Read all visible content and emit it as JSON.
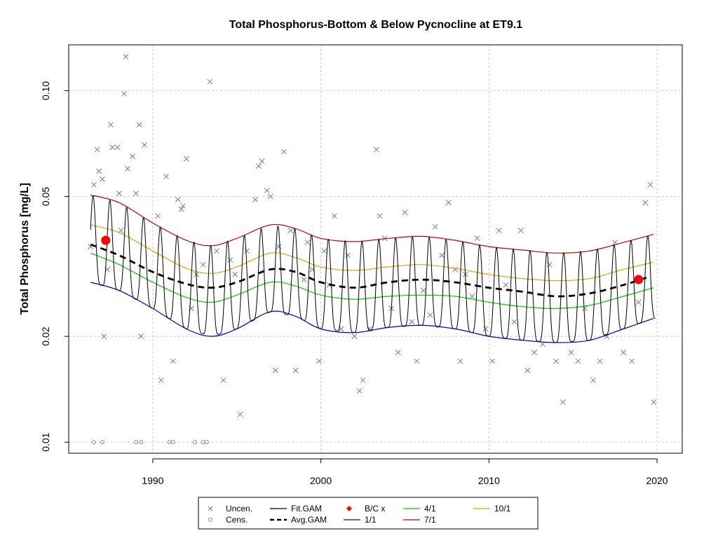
{
  "chart_data": {
    "type": "scatter",
    "title": "Total Phosphorus-Bottom & Below Pycnocline at ET9.1",
    "xlabel": "",
    "ylabel": "Total Phosphorus [mg/L]",
    "xlim": [
      1985.0,
      2021.5
    ],
    "ylim": [
      0.0093,
      0.135
    ],
    "y_scale": "log",
    "grid": true,
    "x_ticks": [
      1990,
      2000,
      2010,
      2020
    ],
    "x_tick_labels": [
      "1990",
      "2000",
      "2010",
      "2020"
    ],
    "y_ticks": [
      0.01,
      0.02,
      0.05,
      0.1
    ],
    "y_tick_labels": [
      "0.01",
      "0.02",
      "0.05",
      "0.10"
    ],
    "legend": {
      "position": "bottom",
      "entries": [
        {
          "label": "Uncen.",
          "symbol": "x",
          "color": "#6f7c96"
        },
        {
          "label": "Cens.",
          "symbol": "circle",
          "color": "#8a8a8a"
        },
        {
          "label": "Fit.GAM",
          "symbol": "line",
          "color": "#000000"
        },
        {
          "label": "Avg.GAM",
          "symbol": "dashed-line",
          "color": "#000000"
        },
        {
          "label": "B/C x",
          "symbol": "diamond",
          "color": "#ff0000"
        },
        {
          "label": "1/1",
          "symbol": "line",
          "color": "#0000cc"
        },
        {
          "label": "4/1",
          "symbol": "line",
          "color": "#00cc00"
        },
        {
          "label": "7/1",
          "symbol": "line",
          "color": "#cc0000"
        },
        {
          "label": "10/1",
          "symbol": "line",
          "color": "#e69f00"
        }
      ]
    },
    "series": [
      {
        "name": "Avg.GAM",
        "x": [
          1986.3,
          1988,
          1990,
          1992,
          1993.5,
          1995,
          1997,
          1998.5,
          2000,
          2002,
          2004,
          2006,
          2008,
          2010,
          2012,
          2014,
          2016,
          2018,
          2019.5
        ],
        "y": [
          0.0365,
          0.034,
          0.0305,
          0.0282,
          0.0275,
          0.0285,
          0.031,
          0.0305,
          0.0285,
          0.0275,
          0.0285,
          0.029,
          0.0285,
          0.0275,
          0.0268,
          0.026,
          0.0265,
          0.028,
          0.0295
        ]
      },
      {
        "name": "1/1",
        "x": [
          1986.3,
          1988,
          1990,
          1992,
          1993.5,
          1995,
          1997,
          1998.5,
          2000,
          2002,
          2004,
          2006,
          2008,
          2010,
          2012,
          2014,
          2016,
          2018,
          2019.8
        ],
        "y": [
          0.0285,
          0.027,
          0.024,
          0.021,
          0.02,
          0.021,
          0.0235,
          0.0228,
          0.021,
          0.0205,
          0.0212,
          0.0215,
          0.021,
          0.02,
          0.0195,
          0.0192,
          0.0195,
          0.021,
          0.0225
        ]
      },
      {
        "name": "4/1",
        "x": [
          1986.3,
          1988,
          1990,
          1992,
          1993.5,
          1995,
          1997,
          1998.5,
          2000,
          2002,
          2004,
          2006,
          2008,
          2010,
          2012,
          2014,
          2016,
          2018,
          2019.8
        ],
        "y": [
          0.0345,
          0.032,
          0.0285,
          0.0258,
          0.025,
          0.0262,
          0.0285,
          0.0278,
          0.0262,
          0.0255,
          0.026,
          0.0262,
          0.026,
          0.025,
          0.0243,
          0.024,
          0.0245,
          0.026,
          0.0275
        ]
      },
      {
        "name": "7/1",
        "x": [
          1986.3,
          1988,
          1990,
          1992,
          1993.5,
          1995,
          1997,
          1998.5,
          2000,
          2002,
          2004,
          2006,
          2008,
          2010,
          2012,
          2014,
          2016,
          2018,
          2019.8
        ],
        "y": [
          0.0505,
          0.048,
          0.042,
          0.0375,
          0.0362,
          0.038,
          0.0415,
          0.0405,
          0.038,
          0.0372,
          0.038,
          0.0385,
          0.0375,
          0.036,
          0.0352,
          0.0345,
          0.035,
          0.037,
          0.039
        ]
      },
      {
        "name": "10/1",
        "x": [
          1986.3,
          1988,
          1990,
          1992,
          1993.5,
          1995,
          1997,
          1998.5,
          2000,
          2002,
          2004,
          2006,
          2008,
          2010,
          2012,
          2014,
          2016,
          2018,
          2019.8
        ],
        "y": [
          0.0415,
          0.0395,
          0.035,
          0.0312,
          0.0302,
          0.0315,
          0.0345,
          0.0335,
          0.0315,
          0.0308,
          0.0315,
          0.032,
          0.0312,
          0.03,
          0.0292,
          0.0288,
          0.0292,
          0.031,
          0.0325
        ]
      },
      {
        "name": "B/C x",
        "x": [
          1987.2,
          2018.9
        ],
        "y": [
          0.0375,
          0.029
        ]
      },
      {
        "name": "Uncen.",
        "x": [
          1986.3,
          1986.5,
          1986.7,
          1986.8,
          1987.0,
          1987.1,
          1987.3,
          1987.5,
          1987.6,
          1987.9,
          1988.0,
          1988.1,
          1988.3,
          1988.4,
          1988.5,
          1988.8,
          1989.0,
          1989.2,
          1989.3,
          1989.5,
          1990.3,
          1990.5,
          1990.8,
          1991.2,
          1991.5,
          1991.7,
          1991.8,
          1992.0,
          1992.3,
          1992.6,
          1993.0,
          1993.4,
          1993.8,
          1994.2,
          1994.6,
          1994.9,
          1995.2,
          1995.6,
          1996.1,
          1996.3,
          1996.5,
          1996.8,
          1997.0,
          1997.3,
          1997.5,
          1997.8,
          1998.2,
          1998.5,
          1999.0,
          1999.2,
          1999.5,
          1999.9,
          2000.2,
          2000.5,
          2000.8,
          2001.2,
          2001.6,
          2002.0,
          2002.3,
          2002.5,
          2002.9,
          2003.3,
          2003.5,
          2003.8,
          2004.2,
          2004.6,
          2005.0,
          2005.4,
          2005.7,
          2006.1,
          2006.5,
          2006.8,
          2007.2,
          2007.6,
          2008.0,
          2008.3,
          2008.6,
          2009.0,
          2009.3,
          2009.8,
          2010.2,
          2010.6,
          2011.0,
          2011.5,
          2011.9,
          2012.3,
          2012.7,
          2013.2,
          2013.6,
          2014.0,
          2014.4,
          2014.9,
          2015.3,
          2015.7,
          2016.2,
          2016.6,
          2017.0,
          2017.5,
          2018.0,
          2018.5,
          2018.9,
          2019.3,
          2019.6,
          2019.8
        ],
        "y": [
          0.036,
          0.054,
          0.068,
          0.059,
          0.056,
          0.02,
          0.031,
          0.08,
          0.069,
          0.069,
          0.051,
          0.04,
          0.098,
          0.125,
          0.06,
          0.065,
          0.051,
          0.08,
          0.02,
          0.07,
          0.044,
          0.015,
          0.057,
          0.017,
          0.049,
          0.046,
          0.047,
          0.064,
          0.024,
          0.03,
          0.032,
          0.106,
          0.035,
          0.015,
          0.033,
          0.03,
          0.012,
          0.035,
          0.049,
          0.061,
          0.063,
          0.052,
          0.05,
          0.016,
          0.036,
          0.067,
          0.04,
          0.016,
          0.029,
          0.037,
          0.031,
          0.017,
          0.035,
          0.028,
          0.044,
          0.021,
          0.034,
          0.02,
          0.014,
          0.015,
          0.021,
          0.068,
          0.044,
          0.038,
          0.024,
          0.018,
          0.045,
          0.022,
          0.017,
          0.027,
          0.023,
          0.041,
          0.034,
          0.048,
          0.031,
          0.017,
          0.03,
          0.026,
          0.038,
          0.021,
          0.017,
          0.04,
          0.028,
          0.022,
          0.04,
          0.016,
          0.018,
          0.019,
          0.032,
          0.017,
          0.013,
          0.018,
          0.017,
          0.024,
          0.015,
          0.017,
          0.02,
          0.037,
          0.018,
          0.017,
          0.025,
          0.048,
          0.054,
          0.013
        ]
      },
      {
        "name": "Cens.",
        "x": [
          1986.5,
          1987.0,
          1989.0,
          1989.3,
          1991.0,
          1991.2,
          1992.5,
          1993.0,
          1993.2
        ],
        "y": [
          0.01,
          0.01,
          0.01,
          0.01,
          0.01,
          0.01,
          0.01,
          0.01,
          0.01
        ]
      }
    ],
    "fit_gam": {
      "name": "Fit.GAM",
      "description": "seasonal oscillation around Avg.GAM between 1/1 (low) and 7/1 (high) curves, one cycle per year",
      "start": 1986.3,
      "end": 2019.9
    }
  }
}
